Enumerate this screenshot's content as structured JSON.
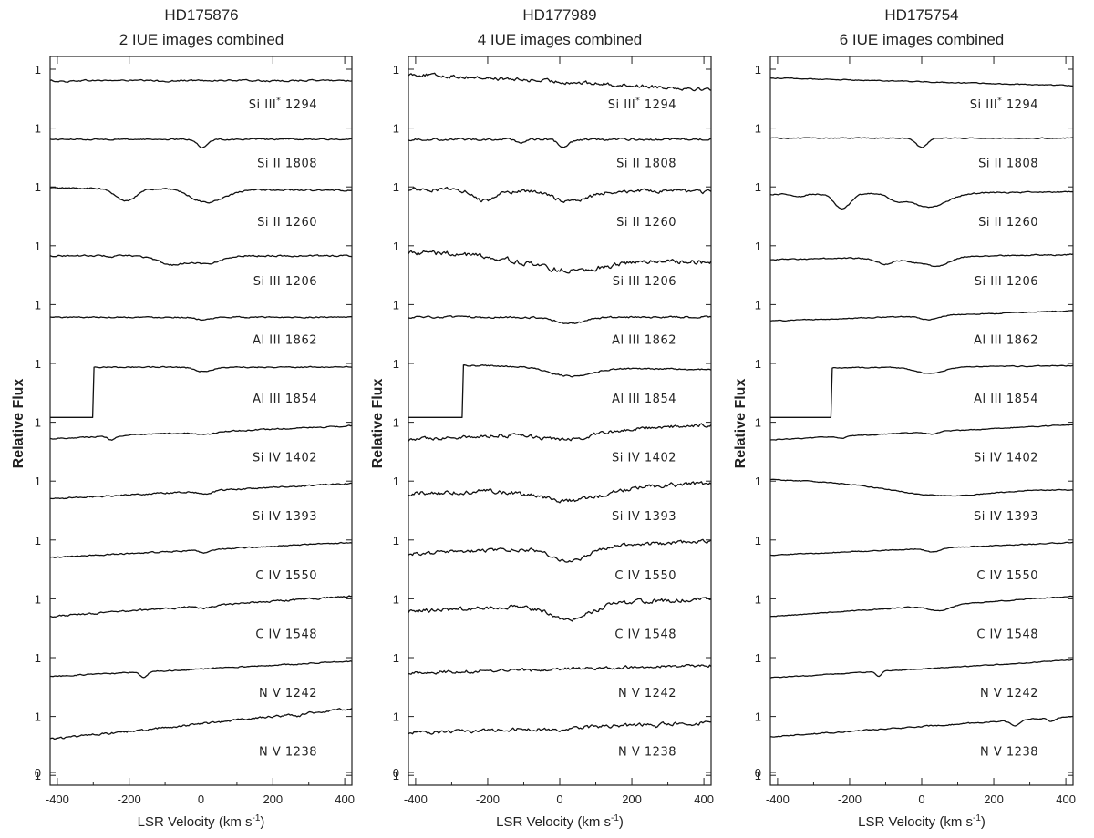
{
  "chart_data": [
    {
      "type": "line",
      "title": "HD175876",
      "subtitle": "2 IUE images combined",
      "xlabel": "LSR Velocity (km s",
      "xlabel_sup": "-1",
      "xlabel_end": ")",
      "ylabel": "Relative Flux",
      "xlim": [
        -420,
        420
      ],
      "xticks": [
        -400,
        -200,
        0,
        200,
        400
      ],
      "yticks": [
        "1",
        "1",
        "1",
        "1",
        "1",
        "1",
        "1",
        "1",
        "1",
        "1",
        "1",
        "1",
        "1",
        "0"
      ],
      "series": [
        {
          "name": "Si III* 1294",
          "ion": "Si III",
          "star": "*",
          "wave": "1294",
          "cont": 0.2,
          "slope": 0.0,
          "noise": 0.05,
          "start": -420,
          "features": [
            [
              -380,
              0.08,
              20
            ],
            [
              -100,
              0.05,
              30
            ],
            [
              200,
              0.05,
              30
            ]
          ]
        },
        {
          "name": "Si II 1808",
          "ion": "Si II",
          "wave": "1808",
          "cont": 0.2,
          "slope": 0.0,
          "noise": 0.04,
          "start": -420,
          "features": [
            [
              5,
              0.65,
              14
            ]
          ]
        },
        {
          "name": "Si II 1260",
          "ion": "Si II",
          "wave": "1260",
          "cont": 0.9,
          "slope": -0.1,
          "noise": 0.05,
          "start": -420,
          "features": [
            [
              -210,
              0.95,
              28
            ],
            [
              30,
              0.85,
              45
            ],
            [
              -10,
              0.3,
              30
            ]
          ]
        },
        {
          "name": "Si III 1206",
          "ion": "Si III",
          "wave": "1206",
          "cont": 0.3,
          "slope": 0.0,
          "noise": 0.05,
          "start": -420,
          "features": [
            [
              -80,
              0.7,
              40
            ],
            [
              20,
              0.6,
              35
            ],
            [
              -250,
              0.1,
              8
            ]
          ]
        },
        {
          "name": "Al III 1862",
          "ion": "Al III",
          "wave": "1862",
          "cont": 0.1,
          "slope": 0.0,
          "noise": 0.04,
          "start": -420,
          "features": [
            [
              10,
              0.22,
              22
            ]
          ]
        },
        {
          "name": "Al III 1854",
          "ion": "Al III",
          "wave": "1854",
          "cont": 0.8,
          "slope": 0.0,
          "noise": 0.04,
          "start": -420,
          "cutoff": -300,
          "features": [
            [
              10,
              0.35,
              25
            ]
          ]
        },
        {
          "name": "Si IV 1402",
          "ion": "Si IV",
          "wave": "1402",
          "cont": 0.3,
          "slope": 0.5,
          "noise": 0.04,
          "start": -420,
          "features": [
            [
              -250,
              0.3,
              10
            ],
            [
              10,
              0.2,
              25
            ]
          ]
        },
        {
          "name": "Si IV 1393",
          "ion": "Si IV",
          "wave": "1393",
          "cont": 0.3,
          "slope": 0.6,
          "noise": 0.05,
          "start": -420,
          "features": [
            [
              10,
              0.25,
              18
            ]
          ]
        },
        {
          "name": "C IV 1550",
          "ion": "C IV",
          "wave": "1550",
          "cont": 0.3,
          "slope": 0.6,
          "noise": 0.04,
          "start": -420,
          "features": [
            [
              10,
              0.25,
              15
            ]
          ]
        },
        {
          "name": "C IV 1548",
          "ion": "C IV",
          "wave": "1548",
          "cont": 0.5,
          "slope": 0.8,
          "noise": 0.06,
          "start": -420,
          "features": [
            [
              10,
              0.2,
              18
            ]
          ]
        },
        {
          "name": "N V 1242",
          "ion": "N V",
          "wave": "1242",
          "cont": 0.2,
          "slope": 0.6,
          "noise": 0.04,
          "start": -420,
          "features": [
            [
              -160,
              0.45,
              10
            ]
          ]
        },
        {
          "name": "N V 1238",
          "ion": "N V",
          "wave": "1238",
          "cont": 0.5,
          "slope": 1.2,
          "noise": 0.07,
          "start": -420,
          "features": [
            [
              270,
              0.2,
              8
            ],
            [
              -150,
              0.05,
              20
            ]
          ]
        }
      ]
    },
    {
      "type": "line",
      "title": "HD177989",
      "subtitle": "4 IUE images combined",
      "xlabel": "LSR Velocity (km s",
      "xlabel_sup": "-1",
      "xlabel_end": ")",
      "ylabel": "Relative Flux",
      "xlim": [
        -420,
        420
      ],
      "xticks": [
        -400,
        -200,
        0,
        200,
        400
      ],
      "yticks": [
        "1",
        "1",
        "1",
        "1",
        "1",
        "1",
        "1",
        "1",
        "1",
        "1",
        "1",
        "1",
        "1",
        "0"
      ],
      "series": [
        {
          "name": "Si III* 1294",
          "ion": "Si III",
          "star": "*",
          "wave": "1294",
          "cont": 0.1,
          "slope": -0.6,
          "noise": 0.12,
          "start": -420,
          "features": []
        },
        {
          "name": "Si II 1808",
          "ion": "Si II",
          "wave": "1808",
          "cont": 0.2,
          "slope": 0.0,
          "noise": 0.07,
          "start": -420,
          "features": [
            [
              10,
              0.55,
              16
            ],
            [
              -110,
              0.25,
              12
            ]
          ]
        },
        {
          "name": "Si II 1260",
          "ion": "Si II",
          "wave": "1260",
          "cont": 0.8,
          "slope": -0.1,
          "noise": 0.12,
          "start": -420,
          "features": [
            [
              -210,
              0.85,
              28
            ],
            [
              30,
              0.85,
              50
            ],
            [
              -140,
              0.2,
              20
            ]
          ]
        },
        {
          "name": "Si III 1206",
          "ion": "Si III",
          "wave": "1206",
          "cont": 0.2,
          "slope": -0.4,
          "noise": 0.16,
          "start": -420,
          "features": [
            [
              20,
              1.0,
              110
            ]
          ]
        },
        {
          "name": "Al III 1862",
          "ion": "Al III",
          "wave": "1862",
          "cont": 0.1,
          "slope": 0.0,
          "noise": 0.06,
          "start": -420,
          "features": [
            [
              30,
              0.5,
              40
            ]
          ]
        },
        {
          "name": "Al III 1854",
          "ion": "Al III",
          "wave": "1854",
          "cont": 0.8,
          "slope": -0.2,
          "noise": 0.05,
          "start": -420,
          "cutoff": -270,
          "features": [
            [
              30,
              0.7,
              60
            ]
          ]
        },
        {
          "name": "Si IV 1402",
          "ion": "Si IV",
          "wave": "1402",
          "cont": 0.3,
          "slope": 0.6,
          "noise": 0.12,
          "start": -420,
          "features": [
            [
              20,
              0.6,
              75
            ]
          ]
        },
        {
          "name": "Si IV 1393",
          "ion": "Si IV",
          "wave": "1393",
          "cont": 0.5,
          "slope": 0.4,
          "noise": 0.14,
          "start": -420,
          "features": [
            [
              30,
              1.0,
              90
            ]
          ]
        },
        {
          "name": "C IV 1550",
          "ion": "C IV",
          "wave": "1550",
          "cont": 0.5,
          "slope": 0.5,
          "noise": 0.12,
          "start": -420,
          "features": [
            [
              30,
              1.1,
              50
            ]
          ]
        },
        {
          "name": "C IV 1548",
          "ion": "C IV",
          "wave": "1548",
          "cont": 0.6,
          "slope": 0.5,
          "noise": 0.14,
          "start": -420,
          "features": [
            [
              30,
              1.2,
              55
            ]
          ]
        },
        {
          "name": "N V 1242",
          "ion": "N V",
          "wave": "1242",
          "cont": 0.2,
          "slope": 0.3,
          "noise": 0.1,
          "start": -420,
          "features": [
            [
              -50,
              0.1,
              30
            ]
          ]
        },
        {
          "name": "N V 1238",
          "ion": "N V",
          "wave": "1238",
          "cont": 0.2,
          "slope": 0.4,
          "noise": 0.12,
          "start": -420,
          "features": [
            [
              0,
              0.15,
              40
            ],
            [
              270,
              0.3,
              6
            ]
          ]
        }
      ]
    },
    {
      "type": "line",
      "title": "HD175754",
      "subtitle": "6 IUE images combined",
      "xlabel": "LSR Velocity (km s",
      "xlabel_sup": "-1",
      "xlabel_end": ")",
      "ylabel": "Relative Flux",
      "xlim": [
        -420,
        420
      ],
      "xticks": [
        -400,
        -200,
        0,
        200,
        400
      ],
      "yticks": [
        "1",
        "1",
        "1",
        "1",
        "1",
        "1",
        "1",
        "1",
        "1",
        "1",
        "1",
        "1",
        "1",
        "0"
      ],
      "series": [
        {
          "name": "Si III* 1294",
          "ion": "Si III",
          "star": "*",
          "wave": "1294",
          "cont": 0.1,
          "slope": -0.3,
          "noise": 0.03,
          "start": -420,
          "features": []
        },
        {
          "name": "Si II 1808",
          "ion": "Si II",
          "wave": "1808",
          "cont": 0.3,
          "slope": 0.0,
          "noise": 0.03,
          "start": -420,
          "features": [
            [
              0,
              0.75,
              15
            ]
          ]
        },
        {
          "name": "Si II 1260",
          "ion": "Si II",
          "wave": "1260",
          "cont": 0.6,
          "slope": 0.1,
          "noise": 0.04,
          "start": -420,
          "features": [
            [
              -220,
              1.2,
              22
            ],
            [
              20,
              1.1,
              50
            ],
            [
              -70,
              0.5,
              20
            ],
            [
              -340,
              0.2,
              15
            ]
          ]
        },
        {
          "name": "Si III 1206",
          "ion": "Si III",
          "wave": "1206",
          "cont": 0.2,
          "slope": 0.2,
          "noise": 0.04,
          "start": -420,
          "features": [
            [
              -100,
              0.5,
              25
            ],
            [
              40,
              0.75,
              35
            ],
            [
              -30,
              0.3,
              20
            ]
          ]
        },
        {
          "name": "Al III 1862",
          "ion": "Al III",
          "wave": "1862",
          "cont": 0.2,
          "slope": 0.4,
          "noise": 0.03,
          "start": -420,
          "features": [
            [
              20,
              0.3,
              25
            ]
          ]
        },
        {
          "name": "Al III 1854",
          "ion": "Al III",
          "wave": "1854",
          "cont": 0.8,
          "slope": 0.1,
          "noise": 0.03,
          "start": -420,
          "cutoff": -250,
          "features": [
            [
              20,
              0.5,
              40
            ]
          ]
        },
        {
          "name": "Si IV 1402",
          "ion": "Si IV",
          "wave": "1402",
          "cont": 0.3,
          "slope": 0.6,
          "noise": 0.03,
          "start": -420,
          "features": [
            [
              -220,
              0.2,
              10
            ],
            [
              30,
              0.2,
              15
            ]
          ]
        },
        {
          "name": "Si IV 1393",
          "ion": "Si IV",
          "wave": "1393",
          "cont": 0.8,
          "slope": -0.4,
          "noise": 0.03,
          "start": -420,
          "features": [
            [
              50,
              0.8,
              140
            ]
          ]
        },
        {
          "name": "C IV 1550",
          "ion": "C IV",
          "wave": "1550",
          "cont": 0.4,
          "slope": 0.5,
          "noise": 0.03,
          "start": -420,
          "features": [
            [
              30,
              0.3,
              20
            ]
          ]
        },
        {
          "name": "C IV 1548",
          "ion": "C IV",
          "wave": "1548",
          "cont": 0.5,
          "slope": 0.8,
          "noise": 0.03,
          "start": -420,
          "features": [
            [
              50,
              0.45,
              30
            ]
          ]
        },
        {
          "name": "N V 1242",
          "ion": "N V",
          "wave": "1242",
          "cont": 0.2,
          "slope": 0.7,
          "noise": 0.03,
          "start": -420,
          "features": [
            [
              -120,
              0.4,
              8
            ]
          ]
        },
        {
          "name": "N V 1238",
          "ion": "N V",
          "wave": "1238",
          "cont": 0.3,
          "slope": 0.8,
          "noise": 0.04,
          "start": -420,
          "features": [
            [
              260,
              0.45,
              14
            ],
            [
              360,
              0.3,
              10
            ]
          ]
        }
      ]
    }
  ]
}
